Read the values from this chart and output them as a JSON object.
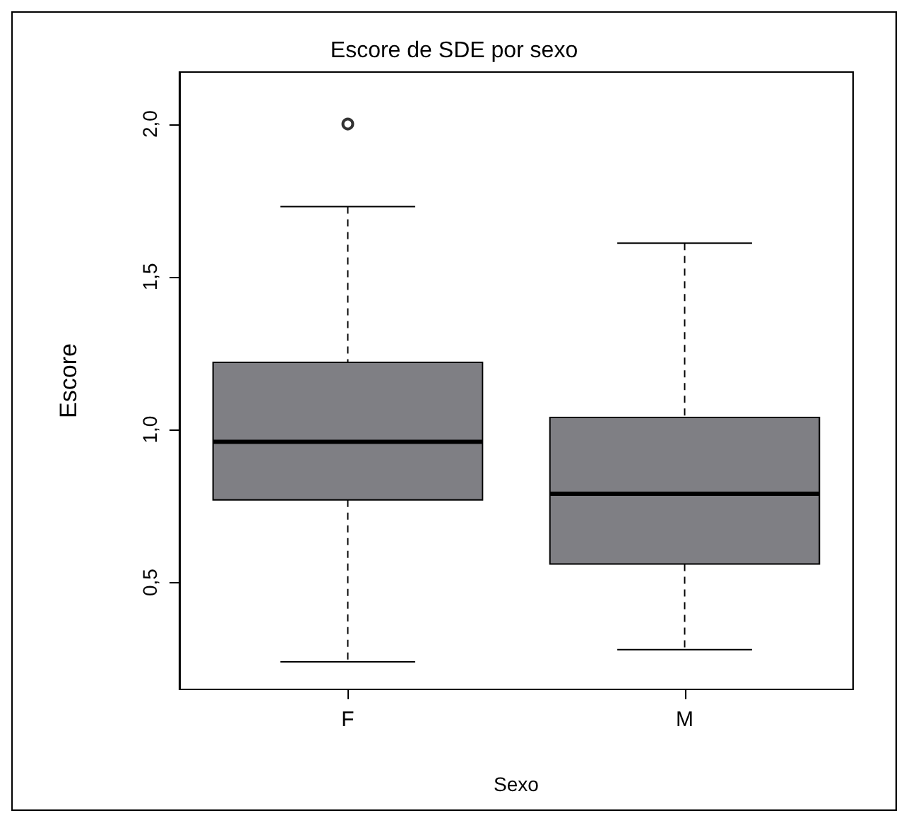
{
  "chart_data": {
    "type": "box",
    "title": "Escore de SDE por sexo",
    "xlabel": "Sexo",
    "ylabel": "Escore",
    "categories": [
      "F",
      "M"
    ],
    "boxes": [
      {
        "low": 0.24,
        "q1": 0.77,
        "median": 0.96,
        "q3": 1.22,
        "high": 1.73,
        "outliers": [
          2.0
        ]
      },
      {
        "low": 0.28,
        "q1": 0.56,
        "median": 0.79,
        "q3": 1.04,
        "high": 1.61
      }
    ],
    "color": "#7f7f84",
    "ylim": [
      0.15,
      2.17
    ],
    "yticks": [
      {
        "value": 0.5,
        "label": "0,5"
      },
      {
        "value": 1.0,
        "label": "1,0"
      },
      {
        "value": 1.5,
        "label": "1,5"
      },
      {
        "value": 2.0,
        "label": "2,0"
      }
    ],
    "grid": false,
    "line_style": "dashed",
    "marker": "circle"
  }
}
